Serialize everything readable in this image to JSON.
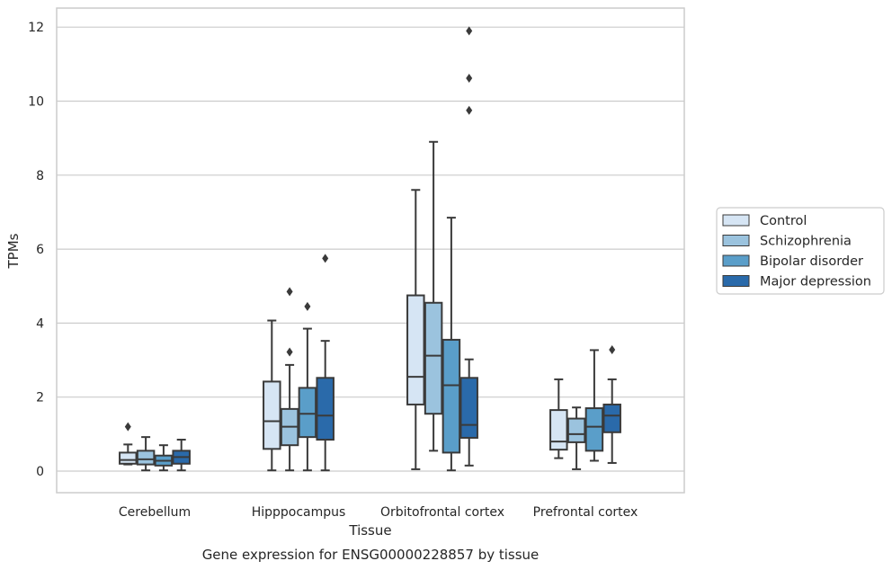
{
  "chart_data": {
    "type": "boxplot",
    "title": "",
    "caption": "Gene expression for ENSG00000228857 by tissue",
    "xlabel": "Tissue",
    "ylabel": "TPMs",
    "ylim": [
      -0.6,
      12.5
    ],
    "yticks": [
      0,
      2,
      4,
      6,
      8,
      10,
      12
    ],
    "grid": "horizontal",
    "legend_position": "right",
    "categories": [
      "Cerebellum",
      "Hipppocampus",
      "Orbitofrontal cortex",
      "Prefrontal cortex"
    ],
    "series": [
      {
        "name": "Control",
        "color": "#d6e5f4",
        "boxes": [
          {
            "whisker_low": 0.18,
            "q1": 0.2,
            "median": 0.3,
            "q3": 0.5,
            "whisker_high": 0.72,
            "outliers": [
              1.2
            ]
          },
          {
            "whisker_low": 0.02,
            "q1": 0.6,
            "median": 1.35,
            "q3": 2.42,
            "whisker_high": 4.07,
            "outliers": []
          },
          {
            "whisker_low": 0.05,
            "q1": 1.8,
            "median": 2.55,
            "q3": 4.75,
            "whisker_high": 7.6,
            "outliers": []
          },
          {
            "whisker_low": 0.35,
            "q1": 0.58,
            "median": 0.8,
            "q3": 1.65,
            "whisker_high": 2.48,
            "outliers": []
          }
        ]
      },
      {
        "name": "Schizophrenia",
        "color": "#9bc3de",
        "boxes": [
          {
            "whisker_low": 0.02,
            "q1": 0.18,
            "median": 0.32,
            "q3": 0.55,
            "whisker_high": 0.92,
            "outliers": []
          },
          {
            "whisker_low": 0.02,
            "q1": 0.7,
            "median": 1.2,
            "q3": 1.68,
            "whisker_high": 2.87,
            "outliers": [
              3.22,
              4.85
            ]
          },
          {
            "whisker_low": 0.55,
            "q1": 1.55,
            "median": 3.12,
            "q3": 4.55,
            "whisker_high": 8.9,
            "outliers": []
          },
          {
            "whisker_low": 0.05,
            "q1": 0.78,
            "median": 1.0,
            "q3": 1.42,
            "whisker_high": 1.72,
            "outliers": []
          }
        ]
      },
      {
        "name": "Bipolar disorder",
        "color": "#5a9ec9",
        "boxes": [
          {
            "whisker_low": 0.02,
            "q1": 0.15,
            "median": 0.28,
            "q3": 0.42,
            "whisker_high": 0.7,
            "outliers": []
          },
          {
            "whisker_low": 0.02,
            "q1": 0.92,
            "median": 1.55,
            "q3": 2.25,
            "whisker_high": 3.85,
            "outliers": [
              4.45
            ]
          },
          {
            "whisker_low": 0.02,
            "q1": 0.5,
            "median": 2.32,
            "q3": 3.55,
            "whisker_high": 6.85,
            "outliers": []
          },
          {
            "whisker_low": 0.28,
            "q1": 0.55,
            "median": 1.2,
            "q3": 1.7,
            "whisker_high": 3.27,
            "outliers": []
          }
        ]
      },
      {
        "name": "Major depression",
        "color": "#2a6aaa",
        "boxes": [
          {
            "whisker_low": 0.02,
            "q1": 0.2,
            "median": 0.38,
            "q3": 0.55,
            "whisker_high": 0.85,
            "outliers": []
          },
          {
            "whisker_low": 0.02,
            "q1": 0.85,
            "median": 1.5,
            "q3": 2.52,
            "whisker_high": 3.52,
            "outliers": [
              5.75
            ]
          },
          {
            "whisker_low": 0.15,
            "q1": 0.9,
            "median": 1.25,
            "q3": 2.52,
            "whisker_high": 3.02,
            "outliers": [
              9.75,
              10.62,
              11.9
            ]
          },
          {
            "whisker_low": 0.22,
            "q1": 1.05,
            "median": 1.5,
            "q3": 1.8,
            "whisker_high": 2.48,
            "outliers": [
              3.28
            ]
          }
        ]
      }
    ]
  }
}
